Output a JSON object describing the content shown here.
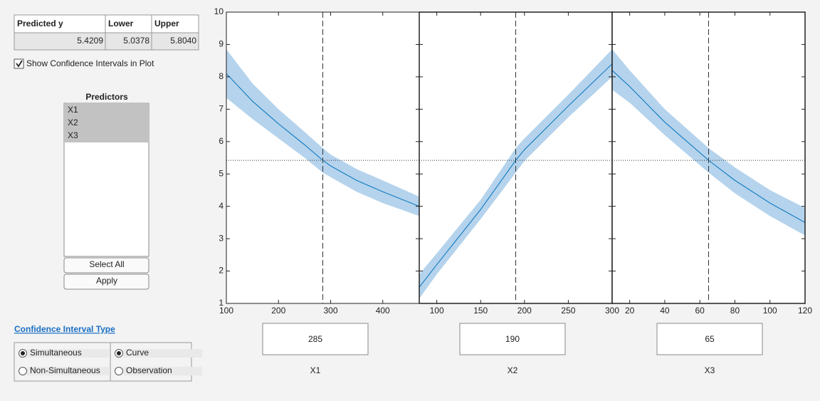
{
  "table": {
    "headers": [
      "Predicted y",
      "Lower",
      "Upper"
    ],
    "rows": [
      [
        5.4209,
        5.0378,
        {
          "value": 5.804,
          "label": "5.8040"
        }
      ]
    ]
  },
  "show_ci": {
    "label": "Show Confidence Intervals in Plot",
    "checked": true
  },
  "predictors": {
    "title": "Predictors",
    "items": [
      "X1",
      "X2",
      "X3"
    ],
    "selected": [
      true,
      true,
      true
    ]
  },
  "buttons": [
    "Select All",
    "Apply"
  ],
  "ci_type": {
    "title": "Confidence Interval Type",
    "options": [
      {
        "label": "Simultaneous",
        "selected": true
      },
      {
        "label": "Non-Simultaneous",
        "selected": false
      },
      {
        "label": "Curve",
        "selected": true
      },
      {
        "label": "Observation",
        "selected": false
      }
    ]
  },
  "chart_data": [
    {
      "type": "line",
      "xlabel": "X1",
      "current": 285,
      "color": "#0072bd",
      "band_color": "#b5d3ec",
      "x": [
        100,
        150,
        200,
        250,
        285,
        300,
        350,
        400,
        470
      ],
      "values": [
        8.1,
        7.25,
        6.55,
        5.9,
        5.42,
        5.25,
        4.8,
        4.45,
        4.0
      ],
      "lower": [
        7.35,
        6.7,
        6.1,
        5.5,
        5.04,
        4.9,
        4.45,
        4.1,
        3.7
      ],
      "upper": [
        8.85,
        7.8,
        7.0,
        6.3,
        5.8,
        5.6,
        5.15,
        4.8,
        4.3
      ],
      "xlim": [
        100,
        470
      ],
      "xticks": [
        100,
        200,
        300,
        400
      ],
      "ylim": [
        1,
        10
      ],
      "yticks": [
        1,
        2,
        3,
        4,
        5,
        6,
        7,
        8,
        9,
        10
      ]
    },
    {
      "type": "line",
      "xlabel": "X2",
      "current": 190,
      "color": "#0072bd",
      "band_color": "#b5d3ec",
      "x": [
        80,
        100,
        150,
        190,
        200,
        250,
        300
      ],
      "values": [
        1.5,
        2.2,
        3.9,
        5.42,
        5.75,
        7.1,
        8.4
      ],
      "lower": [
        1.15,
        1.9,
        3.6,
        5.04,
        5.4,
        6.75,
        8.0
      ],
      "upper": [
        1.9,
        2.55,
        4.2,
        5.8,
        6.1,
        7.45,
        8.85
      ],
      "xlim": [
        80,
        300
      ],
      "xticks": [
        100,
        150,
        200,
        250,
        300
      ],
      "ylim": [
        1,
        10
      ],
      "yticks": [
        1,
        2,
        3,
        4,
        5,
        6,
        7,
        8,
        9,
        10
      ]
    },
    {
      "type": "line",
      "xlabel": "X3",
      "current": 65,
      "color": "#0072bd",
      "band_color": "#b5d3ec",
      "x": [
        10,
        20,
        40,
        65,
        80,
        100,
        120
      ],
      "values": [
        8.2,
        7.7,
        6.6,
        5.42,
        4.8,
        4.1,
        3.5
      ],
      "lower": [
        7.6,
        7.2,
        6.2,
        5.04,
        4.4,
        3.7,
        3.1
      ],
      "upper": [
        8.85,
        8.2,
        7.0,
        5.8,
        5.2,
        4.5,
        3.95
      ],
      "xlim": [
        10,
        120
      ],
      "xticks": [
        20,
        40,
        60,
        80,
        100,
        120
      ],
      "ylim": [
        1,
        10
      ],
      "yticks": [
        1,
        2,
        3,
        4,
        5,
        6,
        7,
        8,
        9,
        10
      ]
    }
  ]
}
